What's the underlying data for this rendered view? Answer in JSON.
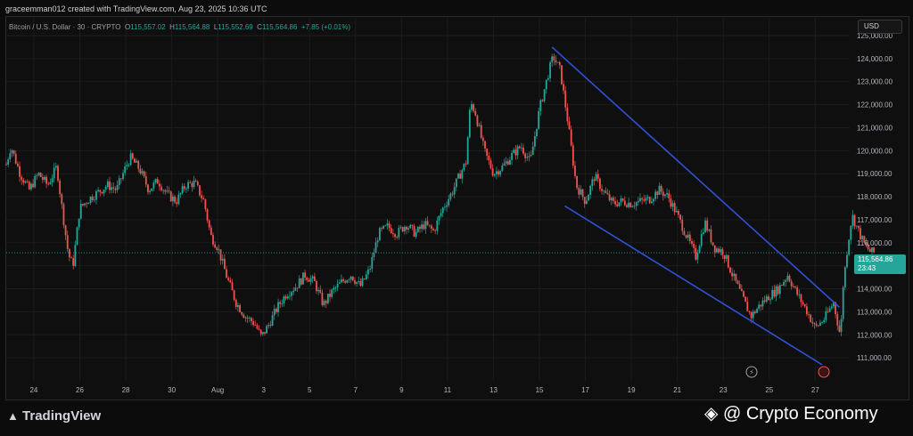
{
  "header": {
    "caption": "graceemman012 created with TradingView.com, Aug 23, 2025 10:36 UTC"
  },
  "legend": {
    "symbol": "Bitcoin / U.S. Dollar · 30 · CRYPTO",
    "o_label": "O",
    "o": "115,557.02",
    "h_label": "H",
    "h": "115,564.88",
    "l_label": "L",
    "l": "115,552.69",
    "c_label": "C",
    "c": "115,564.86",
    "change": "+7.85 (+0.01%)"
  },
  "currency": "USD",
  "price_tag": {
    "price": "115,564.86",
    "countdown": "23:43"
  },
  "footer": {
    "brand": "TradingView",
    "watermark": "@ Crypto Economy"
  },
  "colors": {
    "up": "#26a69a",
    "down": "#ef5350",
    "channel": "#2f52d4",
    "background": "#0f0f0f",
    "grid": "#1c1c1c"
  },
  "chart_data": {
    "type": "candlestick",
    "ylim": [
      110000,
      125000
    ],
    "yticks": [
      "111,000.00",
      "112,000.00",
      "113,000.00",
      "114,000.00",
      "115,000.00",
      "116,000.00",
      "117,000.00",
      "118,000.00",
      "119,000.00",
      "120,000.00",
      "121,000.00",
      "122,000.00",
      "123,000.00",
      "124,000.00",
      "125,000.00"
    ],
    "yvalues": [
      111000,
      112000,
      113000,
      114000,
      115000,
      116000,
      117000,
      118000,
      119000,
      120000,
      121000,
      122000,
      123000,
      124000,
      125000
    ],
    "xlabels": [
      "24",
      "26",
      "28",
      "30",
      "Aug",
      "3",
      "5",
      "7",
      "9",
      "11",
      "13",
      "15",
      "17",
      "19",
      "21",
      "23",
      "25",
      "27"
    ],
    "xdays": [
      0,
      2,
      4,
      6,
      8,
      10,
      12,
      14,
      16,
      18,
      20,
      22,
      24,
      26,
      28,
      30,
      32,
      34
    ],
    "xlim": [
      -1.2,
      35.5
    ],
    "current_price": 115564.86,
    "price_path": [
      [
        -1.2,
        119400
      ],
      [
        -1.0,
        120200
      ],
      [
        -0.6,
        119000
      ],
      [
        -0.2,
        118300
      ],
      [
        0.2,
        119000
      ],
      [
        0.6,
        118500
      ],
      [
        1.0,
        119300
      ],
      [
        1.2,
        117700
      ],
      [
        1.5,
        115500
      ],
      [
        1.7,
        115000
      ],
      [
        2.0,
        117500
      ],
      [
        2.4,
        117900
      ],
      [
        2.8,
        118200
      ],
      [
        3.2,
        118500
      ],
      [
        3.6,
        118300
      ],
      [
        4.0,
        119300
      ],
      [
        4.2,
        119700
      ],
      [
        4.6,
        119200
      ],
      [
        5.0,
        118300
      ],
      [
        5.4,
        118700
      ],
      [
        5.8,
        118100
      ],
      [
        6.2,
        117800
      ],
      [
        6.6,
        118500
      ],
      [
        7.0,
        118600
      ],
      [
        7.4,
        117800
      ],
      [
        7.7,
        116300
      ],
      [
        8.0,
        115800
      ],
      [
        8.4,
        114500
      ],
      [
        8.8,
        113400
      ],
      [
        9.2,
        112800
      ],
      [
        9.6,
        112500
      ],
      [
        9.9,
        111900
      ],
      [
        10.2,
        112400
      ],
      [
        10.6,
        113200
      ],
      [
        11.0,
        113800
      ],
      [
        11.4,
        114100
      ],
      [
        11.8,
        114600
      ],
      [
        12.2,
        114300
      ],
      [
        12.6,
        113300
      ],
      [
        13.0,
        113900
      ],
      [
        13.4,
        114300
      ],
      [
        13.8,
        114600
      ],
      [
        14.2,
        114100
      ],
      [
        14.6,
        114800
      ],
      [
        15.0,
        116400
      ],
      [
        15.4,
        116700
      ],
      [
        15.8,
        116400
      ],
      [
        16.2,
        116800
      ],
      [
        16.6,
        116400
      ],
      [
        17.0,
        116800
      ],
      [
        17.4,
        116500
      ],
      [
        17.8,
        117500
      ],
      [
        18.2,
        118200
      ],
      [
        18.6,
        119100
      ],
      [
        18.8,
        119500
      ],
      [
        19.0,
        122100
      ],
      [
        19.2,
        121700
      ],
      [
        19.6,
        120000
      ],
      [
        20.0,
        119000
      ],
      [
        20.4,
        119300
      ],
      [
        20.8,
        119800
      ],
      [
        21.2,
        120200
      ],
      [
        21.6,
        119500
      ],
      [
        22.0,
        121800
      ],
      [
        22.4,
        123400
      ],
      [
        22.6,
        124100
      ],
      [
        22.9,
        123500
      ],
      [
        23.2,
        121500
      ],
      [
        23.6,
        118500
      ],
      [
        24.0,
        117800
      ],
      [
        24.4,
        118900
      ],
      [
        24.8,
        118200
      ],
      [
        25.2,
        117700
      ],
      [
        25.6,
        117800
      ],
      [
        26.0,
        117700
      ],
      [
        26.4,
        117800
      ],
      [
        26.8,
        117900
      ],
      [
        27.2,
        118300
      ],
      [
        27.6,
        118000
      ],
      [
        28.0,
        117200
      ],
      [
        28.4,
        116300
      ],
      [
        28.8,
        115400
      ],
      [
        29.2,
        116900
      ],
      [
        29.6,
        115800
      ],
      [
        30.0,
        115600
      ],
      [
        30.4,
        114600
      ],
      [
        30.8,
        113700
      ],
      [
        31.2,
        112800
      ],
      [
        31.6,
        113300
      ],
      [
        32.0,
        113700
      ],
      [
        32.4,
        114000
      ],
      [
        32.8,
        114600
      ],
      [
        33.2,
        113800
      ],
      [
        33.6,
        113100
      ],
      [
        34.0,
        112300
      ],
      [
        34.4,
        112700
      ],
      [
        34.8,
        113400
      ],
      [
        35.1,
        111900
      ],
      [
        35.2,
        114000
      ],
      [
        35.4,
        115800
      ],
      [
        35.6,
        117200
      ],
      [
        35.8,
        116700
      ],
      [
        36.1,
        116000
      ],
      [
        36.4,
        115600
      ],
      [
        36.6,
        115560
      ]
    ],
    "channel_upper": {
      "from": [
        22.55,
        124500
      ],
      "to": [
        35.05,
        113200
      ]
    },
    "channel_lower": {
      "from": [
        23.1,
        117600
      ],
      "to": [
        34.3,
        110700
      ]
    }
  }
}
